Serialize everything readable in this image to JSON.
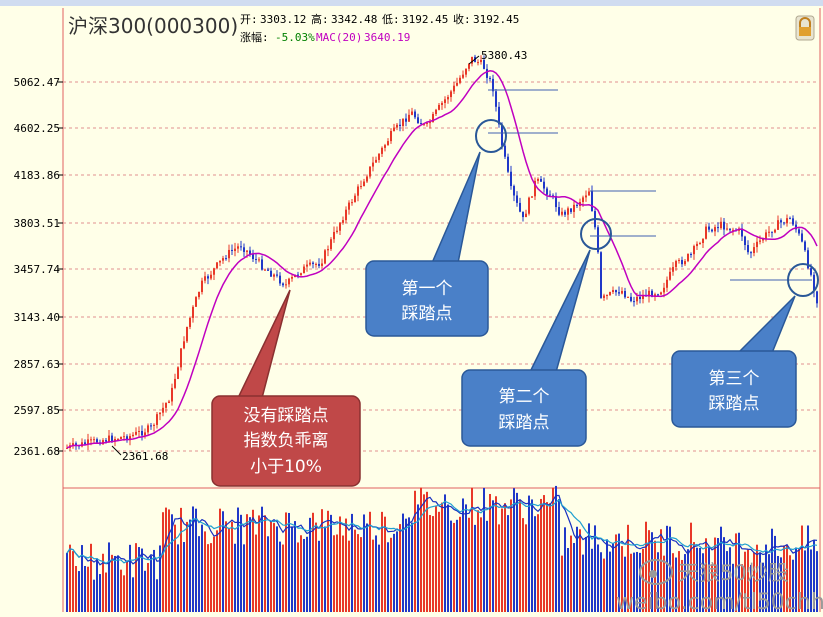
{
  "header": {
    "title": "沪深300(000300)",
    "open_label": "开:",
    "open": "3303.12",
    "high_label": "高:",
    "high": "3342.48",
    "low_label": "低:",
    "low": "3192.45",
    "close_label": "收:",
    "close": "3192.45",
    "change_label": "涨幅:",
    "change": "-5.03%",
    "ma_label": "MAC(20)",
    "ma_value": "3640.19"
  },
  "colors": {
    "up": "#e83828",
    "down": "#2038c8",
    "ma": "#c000c0",
    "callout": "#4a80c8",
    "callout_alt": "#c04848",
    "grid": "#e09090",
    "volume_ma1": "#1830c0",
    "volume_ma2": "#20a0d0"
  },
  "icons": {
    "lock": "lock-icon",
    "weibo": "weibo-icon"
  },
  "chart_data": {
    "type": "candlestick",
    "y_ticks": [
      "5062.47",
      "4602.25",
      "4183.86",
      "3803.51",
      "3457.74",
      "3143.40",
      "2857.63",
      "2597.85",
      "2361.68"
    ],
    "y_log_scale": true,
    "ylim": [
      2300,
      5450
    ],
    "grid": true,
    "annotations": {
      "high_label": "5380.43",
      "low_label": "2361.68",
      "callouts": [
        {
          "lines": [
            "没有踩踏点",
            "指数负乖离",
            "小于10%"
          ],
          "style": "alt"
        },
        {
          "lines": [
            "第一个",
            "踩踏点"
          ],
          "style": "main"
        },
        {
          "lines": [
            "第二个",
            "踩踏点"
          ],
          "style": "main"
        },
        {
          "lines": [
            "第三个",
            "踩踏点"
          ],
          "style": "main"
        }
      ]
    },
    "series": [
      {
        "name": "MAC(20)",
        "type": "moving-average"
      },
      {
        "name": "volume",
        "type": "bar"
      }
    ]
  },
  "watermark": {
    "text1": "天狼50炒股",
    "text2": "weibo.com/tl50chh"
  }
}
